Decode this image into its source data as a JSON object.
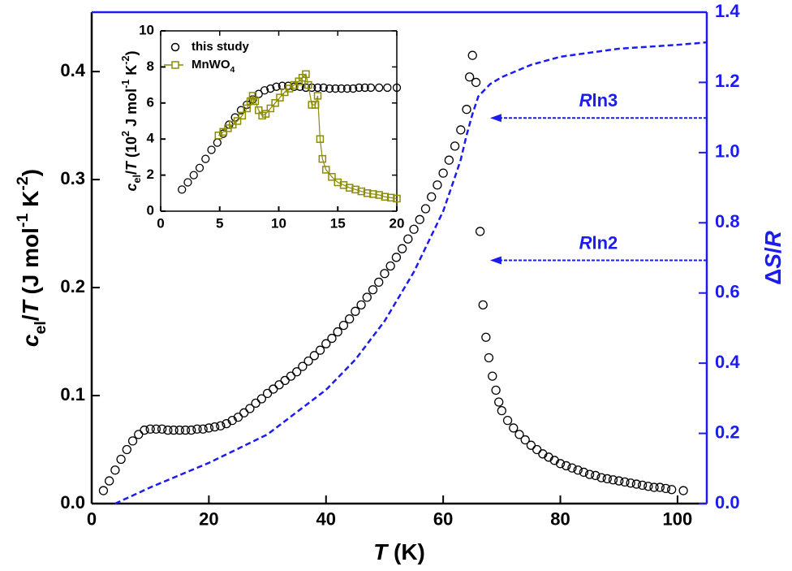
{
  "chart_data": [
    {
      "type": "scatter",
      "xlabel": "T (K)",
      "ylabel": "cel/T (J mol-1 K-2)",
      "y2label": "ΔS/R",
      "xlim": [
        0,
        105
      ],
      "ylim": [
        0,
        0.455
      ],
      "y2lim": [
        0,
        1.4
      ],
      "xticks": [
        0,
        20,
        40,
        60,
        80,
        100
      ],
      "yticks": [
        {
          "value": 0,
          "label": "0.0"
        },
        0.1,
        0.2,
        0.3,
        0.4
      ],
      "y2ticks": [
        {
          "value": 0,
          "label": "0.0"
        },
        0.2,
        0.4,
        0.6,
        0.8,
        {
          "value": 1,
          "label": "1.0"
        },
        1.2,
        1.4
      ],
      "y2_color": "#1c1cf0",
      "series": [
        {
          "type": "scatter",
          "color": "#000000",
          "x": [
            2,
            3,
            4,
            5,
            6,
            7,
            8,
            9,
            10,
            11,
            12,
            13,
            14,
            15,
            16,
            17,
            18,
            19,
            20,
            21,
            22,
            23,
            24,
            25,
            26,
            27,
            28,
            29,
            30,
            31,
            32,
            33,
            34,
            35,
            36,
            37,
            38,
            39,
            40,
            41,
            42,
            43,
            44,
            45,
            46,
            47,
            48,
            49,
            50,
            51,
            52,
            53,
            54,
            55,
            56,
            57,
            58,
            59,
            60,
            61,
            62,
            63,
            64,
            64.5,
            65,
            65.6,
            66.3,
            66.8,
            67.3,
            67.8,
            68.4,
            69,
            69.5,
            70,
            71,
            72,
            73,
            74,
            75,
            76,
            77,
            78,
            79,
            80,
            81,
            82,
            83,
            84,
            85,
            86,
            87,
            88,
            89,
            90,
            91,
            92,
            93,
            94,
            95,
            96,
            97,
            98,
            99,
            101
          ],
          "values": [
            0.012,
            0.021,
            0.031,
            0.041,
            0.05,
            0.058,
            0.064,
            0.068,
            0.069,
            0.069,
            0.069,
            0.068,
            0.068,
            0.068,
            0.068,
            0.068,
            0.069,
            0.069,
            0.07,
            0.071,
            0.072,
            0.074,
            0.077,
            0.08,
            0.084,
            0.088,
            0.093,
            0.097,
            0.102,
            0.106,
            0.11,
            0.114,
            0.118,
            0.122,
            0.127,
            0.132,
            0.137,
            0.142,
            0.148,
            0.153,
            0.159,
            0.165,
            0.171,
            0.178,
            0.184,
            0.191,
            0.198,
            0.205,
            0.213,
            0.22,
            0.228,
            0.236,
            0.245,
            0.254,
            0.263,
            0.273,
            0.284,
            0.295,
            0.306,
            0.318,
            0.331,
            0.346,
            0.365,
            0.395,
            0.415,
            0.39,
            0.252,
            0.184,
            0.154,
            0.135,
            0.118,
            0.105,
            0.094,
            0.086,
            0.077,
            0.07,
            0.064,
            0.059,
            0.054,
            0.05,
            0.046,
            0.043,
            0.04,
            0.037,
            0.035,
            0.033,
            0.031,
            0.029,
            0.027,
            0.026,
            0.024,
            0.023,
            0.022,
            0.021,
            0.02,
            0.019,
            0.018,
            0.017,
            0.016,
            0.015,
            0.015,
            0.014,
            0.013,
            0.012
          ]
        },
        {
          "type": "line",
          "axis": "y2",
          "color": "#1c1cf0",
          "x": [
            4,
            10,
            20,
            30,
            40,
            45,
            50,
            55,
            60,
            62,
            63,
            64,
            65,
            66,
            68,
            70,
            75,
            80,
            90,
            100,
            105
          ],
          "values": [
            0,
            0.046,
            0.116,
            0.197,
            0.324,
            0.41,
            0.52,
            0.66,
            0.833,
            0.93,
            0.98,
            1.05,
            1.11,
            1.16,
            1.195,
            1.215,
            1.25,
            1.273,
            1.296,
            1.307,
            1.314
          ]
        }
      ],
      "annotations": [
        {
          "text": "Rln3",
          "x": 68,
          "y": 1.0986
        },
        {
          "text": "Rln2",
          "x": 68,
          "y": 0.6931
        }
      ]
    },
    {
      "type": "scatter",
      "ylabel": "cel/T (102 J mol-1 K-2)",
      "xlim": [
        0,
        20
      ],
      "ylim": [
        0,
        10
      ],
      "xticks": [
        0,
        5,
        10,
        15,
        20
      ],
      "yticks": [
        0,
        2,
        4,
        6,
        8,
        10
      ],
      "legend": "upper left",
      "series": [
        {
          "type": "scatter",
          "name": "this study",
          "color": "#000000",
          "x": [
            1.8,
            2.3,
            2.8,
            3.3,
            3.8,
            4.3,
            4.8,
            5.3,
            5.8,
            6.3,
            6.8,
            7.3,
            7.8,
            8.3,
            8.8,
            9.3,
            9.8,
            10.3,
            10.8,
            11.3,
            11.8,
            12.3,
            12.8,
            13.3,
            13.8,
            14.3,
            14.8,
            15.3,
            15.8,
            16.3,
            16.8,
            17.3,
            17.8,
            18.5,
            19.2,
            20
          ],
          "values": [
            1.2,
            1.6,
            2.0,
            2.4,
            2.9,
            3.4,
            3.8,
            4.3,
            4.8,
            5.2,
            5.6,
            5.9,
            6.2,
            6.5,
            6.7,
            6.8,
            6.9,
            6.95,
            6.95,
            6.9,
            6.9,
            6.85,
            6.85,
            6.85,
            6.85,
            6.8,
            6.8,
            6.8,
            6.8,
            6.8,
            6.85,
            6.85,
            6.85,
            6.85,
            6.85,
            6.85
          ]
        },
        {
          "type": "line",
          "name": "MnWO4",
          "color": "#8c8c00",
          "x": [
            4.9,
            5.3,
            5.7,
            6.1,
            6.5,
            6.9,
            7.3,
            7.6,
            7.8,
            8.0,
            8.3,
            8.6,
            8.9,
            9.3,
            9.7,
            10.1,
            10.5,
            10.9,
            11.3,
            11.7,
            12.0,
            12.3,
            12.5,
            12.8,
            13.1,
            13.3,
            13.5,
            13.7,
            14.0,
            14.5,
            15.0,
            15.5,
            16.0,
            16.5,
            17.0,
            17.5,
            18.0,
            18.5,
            19.0,
            19.5,
            20.0
          ],
          "values": [
            4.2,
            4.4,
            4.6,
            4.8,
            5.0,
            5.3,
            5.7,
            6.1,
            6.4,
            6.1,
            5.6,
            5.3,
            5.4,
            5.7,
            6.0,
            6.3,
            6.6,
            6.8,
            7.0,
            7.2,
            7.4,
            7.6,
            7.0,
            5.9,
            5.9,
            6.4,
            4.0,
            2.9,
            2.3,
            1.9,
            1.6,
            1.45,
            1.3,
            1.2,
            1.1,
            1.0,
            0.95,
            0.9,
            0.8,
            0.75,
            0.7
          ]
        }
      ]
    }
  ]
}
